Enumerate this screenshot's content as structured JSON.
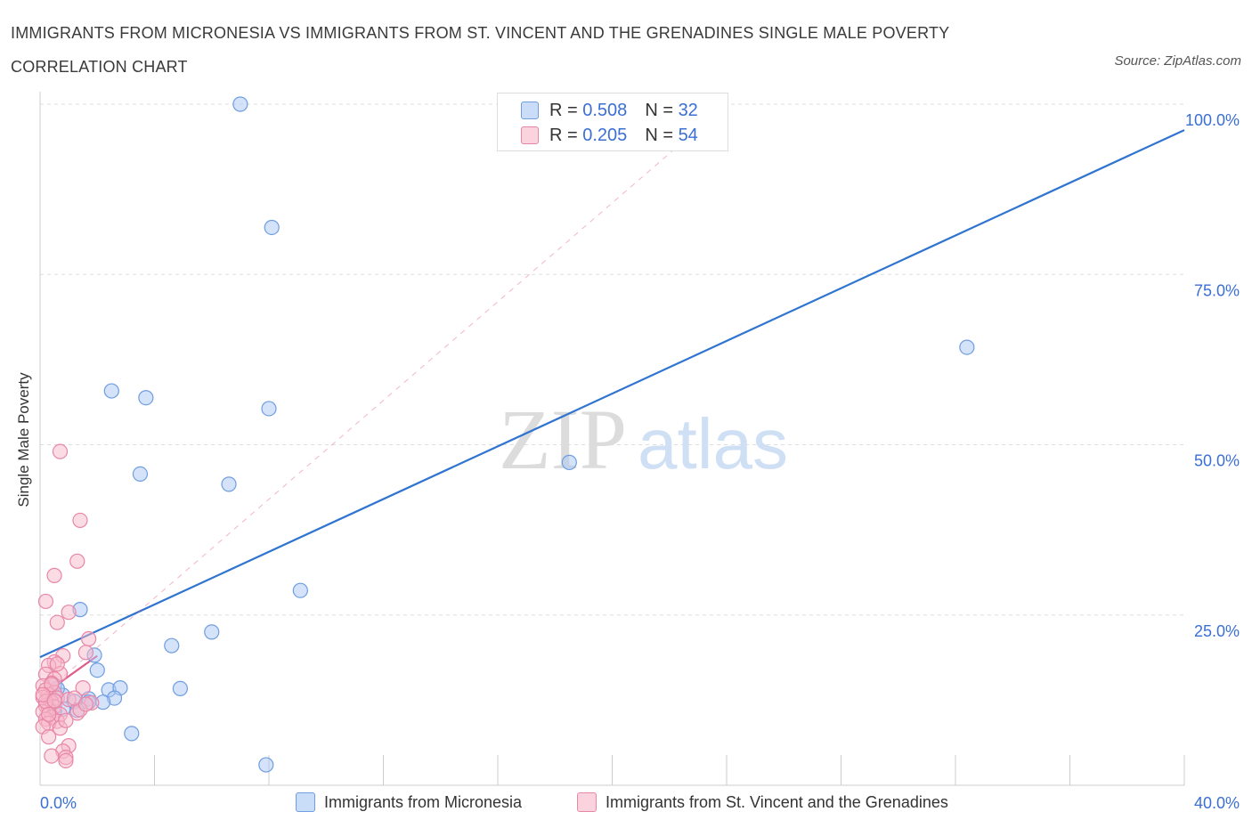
{
  "header": {
    "title": "IMMIGRANTS FROM MICRONESIA VS IMMIGRANTS FROM ST. VINCENT AND THE GRENADINES SINGLE MALE POVERTY CORRELATION CHART",
    "source": "Source: ZipAtlas.com"
  },
  "legend": {
    "r_label": "R =",
    "n_label": "N =",
    "series1": {
      "r": "0.508",
      "n": "32"
    },
    "series2": {
      "r": "0.205",
      "n": "54"
    }
  },
  "colors": {
    "blue_fill": "#aac8f5",
    "blue_stroke": "#6f9de0",
    "blue_line": "#2f74d0",
    "pink_fill": "#f7b9cc",
    "pink_stroke": "#e886a6",
    "pink_line": "#e05a8a",
    "axis_text": "#3b6fd4",
    "grid": "#dddddd"
  },
  "watermark": {
    "zip": "ZIP",
    "atlas": "atlas"
  },
  "chart_data": {
    "type": "scatter",
    "title": "IMMIGRANTS FROM MICRONESIA VS IMMIGRANTS FROM ST. VINCENT AND THE GRENADINES SINGLE MALE POVERTY CORRELATION CHART",
    "xlabel": "",
    "ylabel": "Single Male Poverty",
    "xlim": [
      0,
      40
    ],
    "ylim": [
      0,
      100
    ],
    "x_tick_labels": [
      "0.0%",
      "40.0%"
    ],
    "y_tick_labels": [
      "25.0%",
      "50.0%",
      "75.0%",
      "100.0%"
    ],
    "y_ticks": [
      25,
      50,
      75,
      100
    ],
    "series": [
      {
        "name": "Immigrants from Micronesia",
        "color": "#aac8f5",
        "points": [
          [
            7.0,
            100.0
          ],
          [
            8.1,
            81.9
          ],
          [
            2.5,
            57.9
          ],
          [
            3.7,
            56.9
          ],
          [
            8.0,
            55.3
          ],
          [
            32.4,
            64.3
          ],
          [
            18.5,
            47.4
          ],
          [
            3.5,
            45.7
          ],
          [
            6.6,
            44.2
          ],
          [
            9.1,
            28.6
          ],
          [
            1.4,
            25.8
          ],
          [
            6.0,
            22.5
          ],
          [
            4.6,
            20.5
          ],
          [
            1.9,
            19.1
          ],
          [
            2.0,
            16.9
          ],
          [
            0.5,
            14.7
          ],
          [
            0.8,
            13.2
          ],
          [
            1.7,
            12.7
          ],
          [
            2.4,
            14.0
          ],
          [
            2.8,
            14.3
          ],
          [
            4.9,
            14.2
          ],
          [
            2.6,
            12.8
          ],
          [
            2.2,
            12.2
          ],
          [
            1.2,
            12.3
          ],
          [
            1.7,
            12.2
          ],
          [
            0.8,
            11.2
          ],
          [
            0.3,
            12.7
          ],
          [
            0.5,
            10.9
          ],
          [
            1.3,
            11.0
          ],
          [
            3.2,
            7.6
          ],
          [
            7.9,
            3.0
          ],
          [
            0.6,
            14.2
          ]
        ]
      },
      {
        "name": "Immigrants from St. Vincent and the Grenadines",
        "color": "#f7b9cc",
        "points": [
          [
            0.7,
            49.0
          ],
          [
            1.4,
            38.9
          ],
          [
            1.3,
            32.9
          ],
          [
            0.5,
            30.8
          ],
          [
            0.2,
            27.0
          ],
          [
            1.0,
            25.4
          ],
          [
            0.6,
            23.9
          ],
          [
            1.7,
            21.5
          ],
          [
            1.6,
            19.5
          ],
          [
            0.8,
            19.0
          ],
          [
            0.5,
            18.1
          ],
          [
            0.3,
            17.6
          ],
          [
            0.2,
            16.3
          ],
          [
            0.7,
            16.4
          ],
          [
            0.5,
            15.6
          ],
          [
            0.4,
            15.0
          ],
          [
            0.1,
            14.6
          ],
          [
            0.2,
            14.0
          ],
          [
            0.5,
            13.6
          ],
          [
            0.3,
            13.3
          ],
          [
            0.1,
            12.9
          ],
          [
            0.6,
            12.8
          ],
          [
            0.4,
            12.2
          ],
          [
            0.2,
            11.7
          ],
          [
            0.5,
            11.5
          ],
          [
            0.3,
            11.1
          ],
          [
            0.1,
            10.8
          ],
          [
            0.7,
            10.4
          ],
          [
            0.4,
            10.0
          ],
          [
            0.2,
            9.7
          ],
          [
            0.6,
            9.4
          ],
          [
            0.3,
            9.1
          ],
          [
            0.1,
            8.6
          ],
          [
            0.7,
            8.4
          ],
          [
            0.3,
            7.1
          ],
          [
            1.0,
            5.8
          ],
          [
            0.8,
            5.0
          ],
          [
            0.4,
            4.3
          ],
          [
            0.9,
            4.1
          ],
          [
            0.9,
            3.6
          ],
          [
            1.3,
            10.6
          ],
          [
            1.5,
            14.3
          ],
          [
            1.8,
            12.1
          ],
          [
            1.4,
            11.1
          ],
          [
            0.9,
            9.5
          ],
          [
            0.2,
            12.3
          ],
          [
            0.4,
            14.8
          ],
          [
            1.0,
            12.6
          ],
          [
            0.6,
            17.8
          ],
          [
            0.1,
            13.3
          ],
          [
            0.3,
            10.4
          ],
          [
            1.2,
            12.8
          ],
          [
            1.6,
            11.9
          ],
          [
            0.5,
            12.4
          ]
        ]
      }
    ],
    "trendlines": [
      {
        "series": "Immigrants from Micronesia",
        "from": [
          0,
          18.8
        ],
        "to": [
          40,
          96.2
        ],
        "style": "solid"
      },
      {
        "series": "Immigrants from St. Vincent and the Grenadines",
        "from": [
          0,
          13.0
        ],
        "to": [
          2.0,
          19.0
        ],
        "style": "solid"
      },
      {
        "series": "Immigrants from St. Vincent and the Grenadines",
        "from": [
          0,
          13.0
        ],
        "to": [
          24,
          100
        ],
        "style": "dashed"
      }
    ]
  }
}
